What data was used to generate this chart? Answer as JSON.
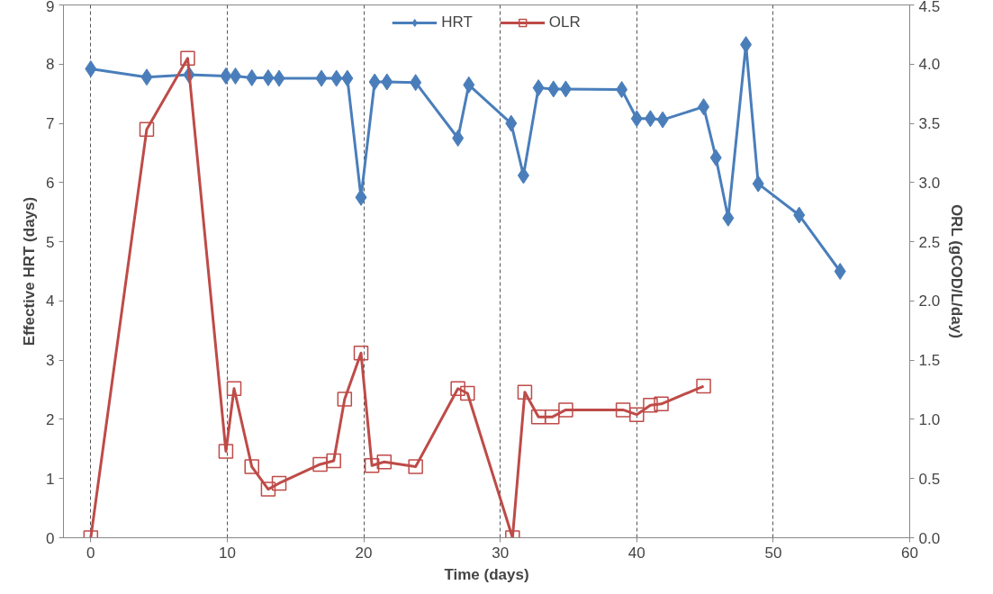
{
  "chart_data": {
    "type": "line",
    "xlabel": "Time (days)",
    "ylabel": "Effective HRT (days)",
    "y2label": "ORL (gCOD/L/day)",
    "xlim": [
      -2,
      60
    ],
    "xticks": [
      0,
      10,
      20,
      30,
      40,
      50,
      60
    ],
    "ylim": [
      0,
      9
    ],
    "yticks": [
      0,
      1,
      2,
      3,
      4,
      5,
      6,
      7,
      8,
      9
    ],
    "y2lim": [
      0,
      4.5
    ],
    "y2ticks": [
      {
        "value": 0,
        "label": "0.0"
      },
      {
        "value": 0.5,
        "label": "0.5"
      },
      {
        "value": 1,
        "label": "1.0"
      },
      {
        "value": 1.5,
        "label": "1.5"
      },
      {
        "value": 2,
        "label": "2.0"
      },
      {
        "value": 2.5,
        "label": "2.5"
      },
      {
        "value": 3,
        "label": "3.0"
      },
      {
        "value": 3.5,
        "label": "3.5"
      },
      {
        "value": 4,
        "label": "4.0"
      },
      {
        "value": 4.5,
        "label": "4.5"
      }
    ],
    "grid": "x",
    "legend": "top",
    "series": [
      {
        "name": "HRT",
        "color": "#4a7ebb",
        "marker": "diamond",
        "x": [
          0,
          4.1,
          7.2,
          9.9,
          10.6,
          11.8,
          13,
          13.8,
          16.9,
          18,
          18.8,
          19.8,
          20.8,
          21.7,
          23.8,
          26.9,
          27.7,
          30.8,
          31.7,
          32.8,
          33.9,
          34.8,
          38.9,
          40,
          41,
          41.9,
          44.9,
          45.8,
          46.7,
          48,
          48.9,
          51.9,
          54.9
        ],
        "values": [
          7.92,
          7.78,
          7.82,
          7.8,
          7.8,
          7.77,
          7.77,
          7.76,
          7.76,
          7.76,
          7.76,
          5.75,
          7.7,
          7.7,
          7.69,
          6.75,
          7.65,
          7.0,
          6.12,
          7.6,
          7.58,
          7.58,
          7.57,
          7.08,
          7.08,
          7.06,
          7.28,
          6.42,
          5.4,
          8.33,
          5.98,
          5.45,
          4.5
        ]
      },
      {
        "name": "OLR",
        "color": "#be4b48",
        "marker": "square",
        "axis": "y2",
        "x": [
          0,
          4.1,
          7.1,
          9.9,
          10.5,
          11.8,
          13,
          13.8,
          16.8,
          17.8,
          18.6,
          19.8,
          20.6,
          21.5,
          23.8,
          26.9,
          27.6,
          30.9,
          31.8,
          32.8,
          33.8,
          34.8,
          39,
          40,
          41,
          41.8,
          44.9
        ],
        "values": [
          0,
          3.45,
          4.05,
          0.73,
          1.26,
          0.6,
          0.41,
          0.46,
          0.62,
          0.65,
          1.17,
          1.56,
          0.61,
          0.64,
          0.6,
          1.26,
          1.22,
          0,
          1.23,
          1.02,
          1.02,
          1.08,
          1.08,
          1.04,
          1.12,
          1.13,
          1.28
        ]
      }
    ]
  }
}
